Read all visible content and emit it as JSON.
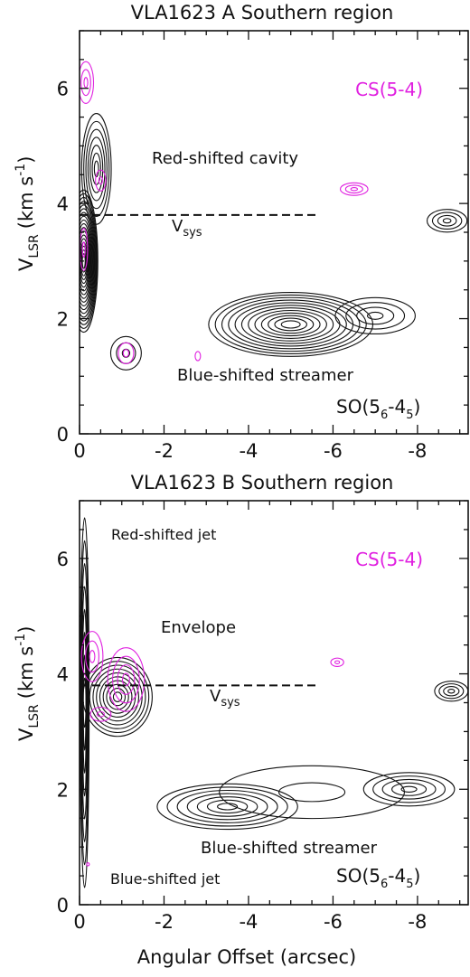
{
  "figure": {
    "xlabel": "Angular Offset (arcsec)"
  },
  "colors": {
    "axis": "#111111",
    "so_contour": "#111111",
    "cs_contour": "#e020e0",
    "dashed_line": "#111111"
  },
  "chart_data": [
    {
      "type": "contour",
      "title": "VLA1623 A Southern region",
      "ylabel_main": "V",
      "ylabel_sub": "LSR",
      "ylabel_unit": "(km s",
      "ylabel_exp": "-1",
      "ylabel_close": ")",
      "xlim": [
        0,
        -9.2
      ],
      "ylim": [
        0,
        7
      ],
      "x_ticks": [
        "0",
        "-2",
        "-4",
        "-6",
        "-8"
      ],
      "x_tick_values": [
        0,
        -2,
        -4,
        -6,
        -8
      ],
      "y_ticks": [
        "0",
        "2",
        "4",
        "6"
      ],
      "y_tick_values": [
        0,
        2,
        4,
        6
      ],
      "vsys_kms": 3.8,
      "vsys_label_main": "V",
      "vsys_label_sub": "sys",
      "annotations": [
        "Red-shifted cavity",
        "Blue-shifted streamer"
      ],
      "tracer_black": {
        "main": "SO(5",
        "sub1": "6",
        "mid": "-4",
        "sub2": "5",
        "close": ")"
      },
      "tracer_magenta": "CS(5-4)",
      "so_features": [
        {
          "x": 0.1,
          "y": 3.0,
          "dx": 0.35,
          "dy": 1.3,
          "n": 18
        },
        {
          "x": 0.4,
          "y": 4.6,
          "dx": 0.4,
          "dy": 1.1,
          "n": 7
        },
        {
          "x": 1.1,
          "y": 1.4,
          "dx": 0.5,
          "dy": 0.4,
          "n": 3
        },
        {
          "x": 5.0,
          "y": 1.9,
          "dx": 2.1,
          "dy": 0.6,
          "n": 12
        },
        {
          "x": 7.0,
          "y": 2.05,
          "dx": 1.2,
          "dy": 0.4,
          "n": 4
        },
        {
          "x": 8.7,
          "y": 3.7,
          "dx": 0.6,
          "dy": 0.25,
          "n": 4
        }
      ],
      "cs_features": [
        {
          "x": 0.15,
          "y": 6.1,
          "dx": 0.25,
          "dy": 0.5,
          "n": 3
        },
        {
          "x": 0.5,
          "y": 4.4,
          "dx": 0.2,
          "dy": 0.3,
          "n": 2
        },
        {
          "x": 1.1,
          "y": 1.4,
          "dx": 0.3,
          "dy": 0.3,
          "n": 2
        },
        {
          "x": 2.8,
          "y": 1.35,
          "dx": 0.2,
          "dy": 0.25,
          "n": 1
        },
        {
          "x": 6.5,
          "y": 4.25,
          "dx": 0.45,
          "dy": 0.15,
          "n": 3
        },
        {
          "x": 0.1,
          "y": 3.2,
          "dx": 0.15,
          "dy": 0.6,
          "n": 2
        }
      ]
    },
    {
      "type": "contour",
      "title": "VLA1623 B Southern region",
      "ylabel_main": "V",
      "ylabel_sub": "LSR",
      "ylabel_unit": "(km s",
      "ylabel_exp": "-1",
      "ylabel_close": ")",
      "xlim": [
        0,
        -9.2
      ],
      "ylim": [
        0,
        7
      ],
      "x_ticks": [
        "0",
        "-2",
        "-4",
        "-6",
        "-8"
      ],
      "x_tick_values": [
        0,
        -2,
        -4,
        -6,
        -8
      ],
      "y_ticks": [
        "0",
        "2",
        "4",
        "6"
      ],
      "y_tick_values": [
        0,
        2,
        4,
        6
      ],
      "vsys_kms": 3.8,
      "vsys_label_main": "V",
      "vsys_label_sub": "sys",
      "annotations": [
        "Red-shifted jet",
        "Envelope",
        "Blue-shifted streamer",
        "Blue-shifted jet"
      ],
      "tracer_black": {
        "main": "SO(5",
        "sub1": "6",
        "mid": "-4",
        "sub2": "5",
        "close": ")"
      },
      "tracer_magenta": "CS(5-4)",
      "so_features": [
        {
          "x": 0.12,
          "y": 3.5,
          "dx": 0.12,
          "dy": 3.6,
          "n": 8
        },
        {
          "x": 0.9,
          "y": 3.6,
          "dx": 0.9,
          "dy": 0.75,
          "n": 10
        },
        {
          "x": 3.5,
          "y": 1.7,
          "dx": 1.9,
          "dy": 0.45,
          "n": 7
        },
        {
          "x": 7.8,
          "y": 2.0,
          "dx": 1.3,
          "dy": 0.35,
          "n": 5
        },
        {
          "x": 8.8,
          "y": 3.7,
          "dx": 0.5,
          "dy": 0.22,
          "n": 4
        },
        {
          "x": 5.5,
          "y": 1.95,
          "dx": 3.6,
          "dy": 0.75,
          "n": 2
        }
      ],
      "cs_features": [
        {
          "x": 0.3,
          "y": 4.3,
          "dx": 0.35,
          "dy": 0.6,
          "n": 3
        },
        {
          "x": 1.1,
          "y": 3.9,
          "dx": 0.55,
          "dy": 0.7,
          "n": 4
        },
        {
          "x": 0.5,
          "y": 3.3,
          "dx": 0.4,
          "dy": 0.2,
          "n": 2
        },
        {
          "x": 6.1,
          "y": 4.2,
          "dx": 0.25,
          "dy": 0.12,
          "n": 2
        },
        {
          "x": 0.2,
          "y": 0.7,
          "dx": 0.08,
          "dy": 0.08,
          "n": 1
        }
      ]
    }
  ]
}
